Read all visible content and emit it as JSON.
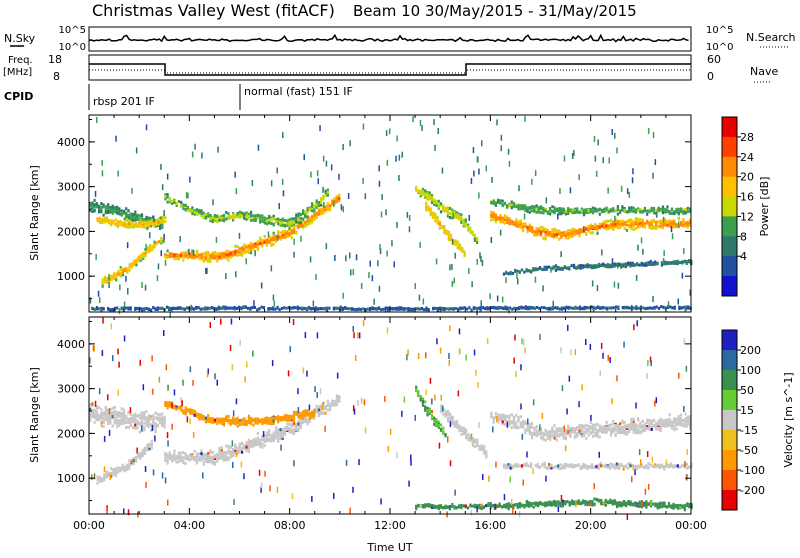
{
  "header": {
    "title": "Christmas Valley West (fitACF)",
    "beam_info": "Beam 10 30/May/2015 - 31/May/2015"
  },
  "top_panels": {
    "nsky_label": "N.Sky",
    "nsky_ticks": [
      "10^5",
      "10^0"
    ],
    "nsearch_label": "N.Search",
    "nsearch_ticks": [
      "10^5",
      "10^0"
    ],
    "freq_label_1": "Freq.",
    "freq_label_2": "[MHz]",
    "freq_ticks": [
      "18",
      "8"
    ],
    "nave_label": "Nave",
    "nave_ticks": [
      "60",
      "0"
    ],
    "cpid_label": "CPID",
    "cpid_segments": [
      {
        "label": "rbsp 201 IF",
        "start_hour": 0
      },
      {
        "label": "normal (fast) 151 IF",
        "start_hour": 6
      }
    ]
  },
  "colorbars": {
    "power": {
      "label": "Power [dB]",
      "ticks": [
        "28",
        "24",
        "20",
        "16",
        "12",
        "8",
        "4"
      ],
      "colors": [
        "#e60000",
        "#ff4000",
        "#ff8c00",
        "#ffc000",
        "#c8d800",
        "#3aa050",
        "#2e7a6a",
        "#2050a0",
        "#1010d0"
      ]
    },
    "velocity": {
      "label": "Velocity [m s^-1]",
      "ticks": [
        "200",
        "100",
        "50",
        "15",
        "-15",
        "-50",
        "-100",
        "-200"
      ],
      "colors": [
        "#2020c0",
        "#2a6aa0",
        "#3a9050",
        "#66cc33",
        "#c8c8c8",
        "#f0c020",
        "#ff9900",
        "#ff5500",
        "#e60000"
      ]
    }
  },
  "chart_data": [
    {
      "type": "heatmap",
      "name": "power",
      "ylabel": "Slant Range [km]",
      "xlim": [
        0,
        24
      ],
      "ylim": [
        200,
        4600
      ],
      "yticks": [
        1000,
        2000,
        3000,
        4000
      ],
      "bands": [
        {
          "points": [
            [
              0,
              2600,
              300
            ],
            [
              1,
              2500,
              300
            ],
            [
              2,
              2300,
              300
            ],
            [
              2.9,
              2200,
              300
            ]
          ],
          "value": 12
        },
        {
          "points": [
            [
              0.3,
              2300,
              200
            ],
            [
              1.2,
              2200,
              250
            ],
            [
              2.5,
              2200,
              250
            ],
            [
              3,
              2300,
              200
            ]
          ],
          "value": 22
        },
        {
          "points": [
            [
              0.5,
              900,
              200
            ],
            [
              1.5,
              1200,
              250
            ],
            [
              2.5,
              1700,
              200
            ],
            [
              3,
              1900,
              150
            ]
          ],
          "value": 22
        },
        {
          "points": [
            [
              3,
              1500,
              200
            ],
            [
              4,
              1500,
              250
            ],
            [
              5,
              1450,
              300
            ],
            [
              6,
              1600,
              300
            ],
            [
              7,
              1800,
              300
            ],
            [
              8,
              2000,
              300
            ],
            [
              9,
              2400,
              250
            ],
            [
              10,
              2800,
              300
            ]
          ],
          "value": 26
        },
        {
          "points": [
            [
              3,
              2800,
              200
            ],
            [
              4,
              2500,
              200
            ],
            [
              5,
              2300,
              250
            ],
            [
              6,
              2400,
              250
            ],
            [
              7,
              2300,
              250
            ],
            [
              8,
              2200,
              300
            ],
            [
              9,
              2600,
              300
            ],
            [
              9.5,
              2900,
              200
            ]
          ],
          "value": 16
        },
        {
          "points": [
            [
              13,
              3000,
              300
            ],
            [
              14,
              2600,
              300
            ],
            [
              14.8,
              2300,
              300
            ],
            [
              15.5,
              1800,
              250
            ]
          ],
          "value": 18
        },
        {
          "points": [
            [
              13.4,
              2600,
              250
            ],
            [
              14.2,
              2000,
              300
            ],
            [
              15,
              1500,
              200
            ]
          ],
          "value": 22
        },
        {
          "points": [
            [
              16,
              2400,
              300
            ],
            [
              17,
              2200,
              300
            ],
            [
              18,
              2000,
              350
            ],
            [
              19,
              1950,
              300
            ],
            [
              20,
              2100,
              300
            ],
            [
              21,
              2200,
              300
            ],
            [
              22,
              2200,
              300
            ],
            [
              23,
              2200,
              300
            ],
            [
              24,
              2200,
              300
            ]
          ],
          "value": 26
        },
        {
          "points": [
            [
              16,
              2700,
              200
            ],
            [
              17,
              2600,
              200
            ],
            [
              18,
              2500,
              250
            ],
            [
              20,
              2500,
              200
            ],
            [
              22,
              2500,
              200
            ],
            [
              24,
              2500,
              200
            ]
          ],
          "value": 14
        },
        {
          "points": [
            [
              16.5,
              1100,
              100
            ],
            [
              18,
              1200,
              120
            ],
            [
              20,
              1250,
              120
            ],
            [
              22,
              1300,
              120
            ],
            [
              24,
              1350,
              120
            ]
          ],
          "value": 8
        },
        {
          "points": [
            [
              0,
              300,
              80
            ],
            [
              6,
              320,
              80
            ],
            [
              12,
              300,
              80
            ],
            [
              18,
              320,
              80
            ],
            [
              24,
              330,
              80
            ]
          ],
          "value": 6
        }
      ]
    },
    {
      "type": "heatmap",
      "name": "velocity",
      "ylabel": "Slant Range [km]",
      "xlabel": "Time UT",
      "xlim": [
        0,
        24
      ],
      "ylim": [
        200,
        4600
      ],
      "yticks": [
        1000,
        2000,
        3000,
        4000
      ],
      "xticks": [
        "00:00",
        "04:00",
        "08:00",
        "12:00",
        "16:00",
        "20:00",
        "00:00"
      ],
      "bands": [
        {
          "points": [
            [
              0,
              2500,
              500
            ],
            [
              1,
              2400,
              500
            ],
            [
              2,
              2300,
              500
            ],
            [
              3,
              2300,
              500
            ]
          ],
          "value": 0
        },
        {
          "points": [
            [
              0.3,
              1000,
              250
            ],
            [
              1.5,
              1300,
              250
            ],
            [
              2.5,
              1800,
              250
            ]
          ],
          "value": 0
        },
        {
          "points": [
            [
              3,
              1500,
              300
            ],
            [
              4,
              1500,
              350
            ],
            [
              5,
              1500,
              400
            ],
            [
              6,
              1700,
              400
            ],
            [
              7,
              1900,
              400
            ],
            [
              8,
              2100,
              400
            ],
            [
              9,
              2500,
              300
            ],
            [
              10,
              2800,
              300
            ]
          ],
          "value": 0
        },
        {
          "points": [
            [
              3,
              2700,
              200
            ],
            [
              5,
              2300,
              250
            ],
            [
              7,
              2300,
              250
            ],
            [
              9,
              2500,
              250
            ]
          ],
          "value": -60
        },
        {
          "points": [
            [
              13,
              3000,
              250
            ],
            [
              13.5,
              2500,
              300
            ],
            [
              14.2,
              2000,
              200
            ]
          ],
          "value": 30
        },
        {
          "points": [
            [
              14,
              2600,
              250
            ],
            [
              15,
              2000,
              250
            ],
            [
              15.8,
              1600,
              250
            ]
          ],
          "value": 0
        },
        {
          "points": [
            [
              16,
              2400,
              300
            ],
            [
              17,
              2300,
              350
            ],
            [
              18,
              2000,
              400
            ],
            [
              20,
              2100,
              400
            ],
            [
              22,
              2200,
              400
            ],
            [
              24,
              2300,
              400
            ]
          ],
          "value": 0
        },
        {
          "points": [
            [
              16.5,
              1300,
              150
            ],
            [
              18,
              1300,
              150
            ],
            [
              20,
              1300,
              150
            ],
            [
              22,
              1300,
              150
            ],
            [
              24,
              1300,
              150
            ]
          ],
          "value": 0
        },
        {
          "points": [
            [
              13,
              400,
              150
            ],
            [
              16,
              400,
              150
            ],
            [
              20,
              500,
              200
            ],
            [
              24,
              400,
              150
            ]
          ],
          "value": 40
        }
      ]
    }
  ]
}
